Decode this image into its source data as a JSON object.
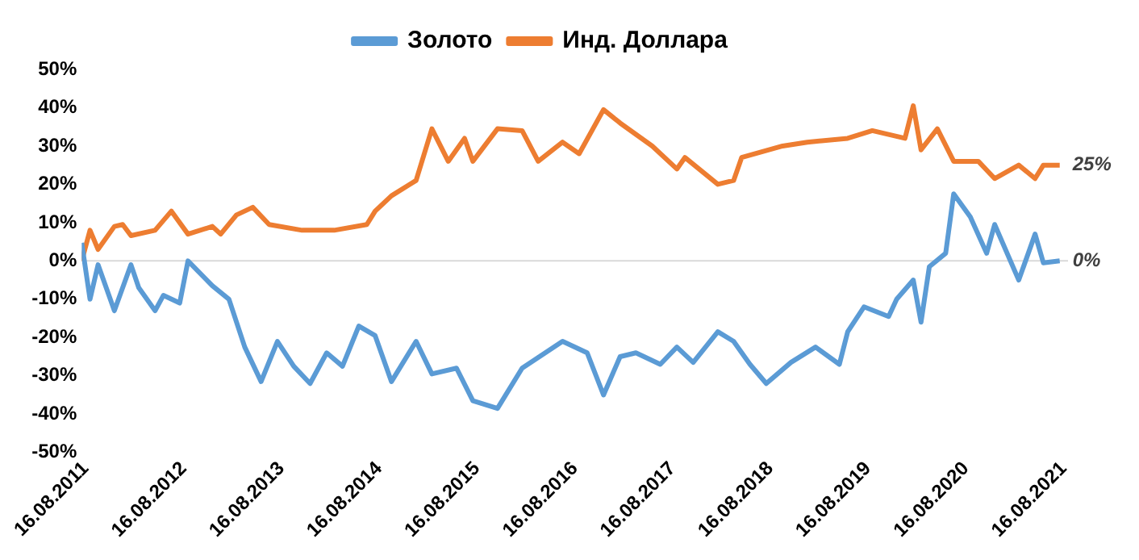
{
  "chart_data": {
    "type": "line",
    "legend": "top",
    "grid": false,
    "marker": "none",
    "line_style": "solid",
    "xlim": [
      "2011-08",
      "2021-09"
    ],
    "xticks": [
      {
        "value": "2011-08-16",
        "label": "16.08.2011"
      },
      {
        "value": "2012-08-16",
        "label": "16.08.2012"
      },
      {
        "value": "2013-08-16",
        "label": "16.08.2013"
      },
      {
        "value": "2014-08-16",
        "label": "16.08.2014"
      },
      {
        "value": "2015-08-16",
        "label": "16.08.2015"
      },
      {
        "value": "2016-08-16",
        "label": "16.08.2016"
      },
      {
        "value": "2017-08-16",
        "label": "16.08.2017"
      },
      {
        "value": "2018-08-16",
        "label": "16.08.2018"
      },
      {
        "value": "2019-08-16",
        "label": "16.08.2019"
      },
      {
        "value": "2020-08-16",
        "label": "16.08.2020"
      },
      {
        "value": "2021-08-16",
        "label": "16.08.2021"
      }
    ],
    "ylim": [
      -50,
      50
    ],
    "yticks": [
      {
        "value": -50,
        "label": "-50%"
      },
      {
        "value": -40,
        "label": "-40%"
      },
      {
        "value": -30,
        "label": "-30%"
      },
      {
        "value": -20,
        "label": "-20%"
      },
      {
        "value": -10,
        "label": "-10%"
      },
      {
        "value": 0,
        "label": "0%"
      },
      {
        "value": 10,
        "label": "10%"
      },
      {
        "value": 20,
        "label": "20%"
      },
      {
        "value": 30,
        "label": "30%"
      },
      {
        "value": 40,
        "label": "40%"
      },
      {
        "value": 50,
        "label": "50%"
      }
    ],
    "ref_lines": [
      {
        "axis": "y",
        "value": 0,
        "color": "#d9d9d9"
      }
    ],
    "annotations": [
      {
        "text": "25%",
        "x": "2021-08",
        "y": 25
      },
      {
        "text": "0%",
        "x": "2021-08",
        "y": 0
      }
    ],
    "series": [
      {
        "name": "Золото",
        "color": "#5b9bd5",
        "x": [
          "2011-08",
          "2011-09",
          "2011-10",
          "2011-12",
          "2012-02",
          "2012-03",
          "2012-05",
          "2012-06",
          "2012-08",
          "2012-09",
          "2012-12",
          "2013-02",
          "2013-04",
          "2013-06",
          "2013-08",
          "2013-10",
          "2013-12",
          "2014-02",
          "2014-04",
          "2014-06",
          "2014-08",
          "2014-10",
          "2015-01",
          "2015-03",
          "2015-06",
          "2015-08",
          "2015-11",
          "2016-02",
          "2016-07",
          "2016-10",
          "2016-12",
          "2017-02",
          "2017-04",
          "2017-07",
          "2017-09",
          "2017-11",
          "2018-02",
          "2018-04",
          "2018-06",
          "2018-08",
          "2018-11",
          "2019-02",
          "2019-05",
          "2019-06",
          "2019-08",
          "2019-11",
          "2019-12",
          "2020-02",
          "2020-03",
          "2020-04",
          "2020-06",
          "2020-07",
          "2020-09",
          "2020-11",
          "2020-12",
          "2021-03",
          "2021-05",
          "2021-06",
          "2021-08"
        ],
        "values": [
          4.7,
          -10,
          -1,
          -13,
          -1,
          -7,
          -13,
          -9,
          -11,
          0,
          -6.5,
          -10,
          -22.5,
          -31.5,
          -21,
          -27.5,
          -32,
          -24,
          -27.5,
          -17,
          -19.5,
          -31.5,
          -21,
          -29.5,
          -28,
          -36.5,
          -38.5,
          -28,
          -21,
          -24,
          -35,
          -25,
          -24,
          -27,
          -22.5,
          -26.5,
          -18.5,
          -21,
          -27,
          -32,
          -26.5,
          -22.5,
          -27,
          -18.5,
          -12,
          -14.5,
          -10,
          -5,
          -16,
          -1.5,
          2,
          17.5,
          11.5,
          2,
          9.5,
          -5,
          7,
          -0.5,
          0
        ]
      },
      {
        "name": "Инд. Доллара",
        "color": "#ed7d31",
        "x": [
          "2011-08",
          "2011-09",
          "2011-10",
          "2011-12",
          "2012-01",
          "2012-02",
          "2012-05",
          "2012-07",
          "2012-09",
          "2012-12",
          "2013-01",
          "2013-03",
          "2013-05",
          "2013-07",
          "2013-11",
          "2014-03",
          "2014-07",
          "2014-08",
          "2014-10",
          "2015-01",
          "2015-03",
          "2015-05",
          "2015-07",
          "2015-08",
          "2015-11",
          "2016-02",
          "2016-04",
          "2016-07",
          "2016-09",
          "2016-12",
          "2017-02",
          "2017-06",
          "2017-09",
          "2017-10",
          "2018-02",
          "2018-04",
          "2018-05",
          "2018-10",
          "2019-01",
          "2019-06",
          "2019-09",
          "2020-01",
          "2020-02",
          "2020-03",
          "2020-05",
          "2020-07",
          "2020-10",
          "2020-12",
          "2021-03",
          "2021-05",
          "2021-06",
          "2021-08"
        ],
        "values": [
          0,
          8,
          3,
          9,
          9.5,
          6.6,
          8,
          13,
          7,
          9,
          7,
          12,
          14,
          9.5,
          8,
          8,
          9.5,
          13,
          17,
          21,
          34.5,
          26,
          32,
          26,
          34.5,
          34,
          26,
          31,
          28,
          39.5,
          36,
          30,
          24,
          27,
          20,
          21,
          27,
          30,
          31,
          32,
          34,
          32,
          40.5,
          29,
          34.5,
          26,
          26,
          21.5,
          25,
          21.5,
          25,
          25
        ]
      }
    ]
  }
}
